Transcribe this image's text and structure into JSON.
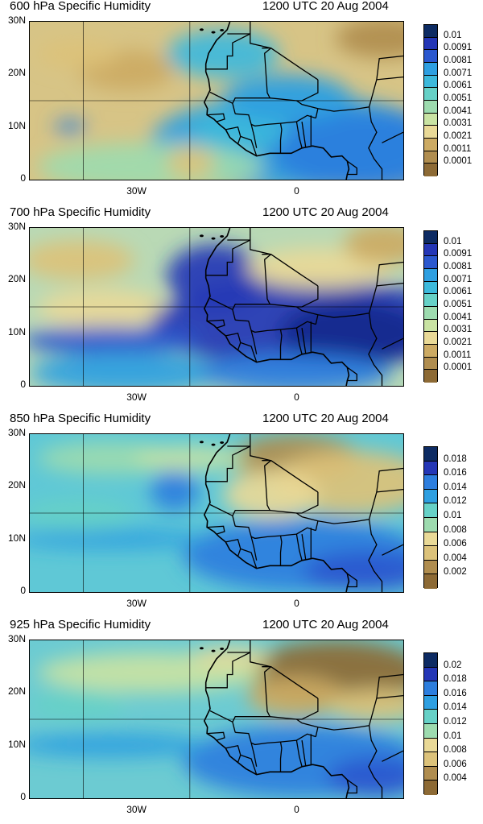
{
  "palette": [
    "#8d6a35",
    "#b08d4f",
    "#ccaa63",
    "#dcc27a",
    "#e9d997",
    "#c9e3a3",
    "#9ddbaf",
    "#66d1c7",
    "#3cb9dc",
    "#2e9fe1",
    "#2d7ede",
    "#2b58cf",
    "#2436b6",
    "#142a8e",
    "#0d2b63"
  ],
  "axes": {
    "y_ticks": [
      "30N",
      "20N",
      "10N",
      "0"
    ],
    "x_ticks": [
      "30W",
      "0"
    ]
  },
  "panels": [
    {
      "title": "600 hPa Specific Humidity",
      "time": "1200 UTC 20 Aug 2004",
      "colorbar": {
        "labels": [
          "0.01",
          "0.0091",
          "0.0081",
          "0.0071",
          "0.0061",
          "0.0051",
          "0.0041",
          "0.0031",
          "0.0021",
          "0.0011",
          "0.0001"
        ],
        "colors": [
          "#0d2b63",
          "#2436b6",
          "#2b58cf",
          "#2d7ede",
          "#2e9fe1",
          "#3cb9dc",
          "#66d1c7",
          "#9ddbaf",
          "#c9e3a3",
          "#e9d997",
          "#dcc27a",
          "#ccaa63",
          "#b08d4f",
          "#8d6a35"
        ]
      },
      "background": "#d7c486",
      "blobs": [
        {
          "cx": 330,
          "cy": 150,
          "rx": 180,
          "ry": 60,
          "c": 9
        },
        {
          "cx": 420,
          "cy": 160,
          "rx": 120,
          "ry": 50,
          "c": 10
        },
        {
          "cx": 260,
          "cy": 135,
          "rx": 60,
          "ry": 25,
          "c": 8
        },
        {
          "cx": 150,
          "cy": 180,
          "rx": 140,
          "ry": 30,
          "c": 6
        },
        {
          "cx": 320,
          "cy": 95,
          "rx": 80,
          "ry": 30,
          "c": 9
        },
        {
          "cx": 240,
          "cy": 40,
          "rx": 70,
          "ry": 30,
          "c": 8
        },
        {
          "cx": 120,
          "cy": 60,
          "rx": 60,
          "ry": 25,
          "c": 2
        },
        {
          "cx": 60,
          "cy": 40,
          "rx": 50,
          "ry": 18,
          "c": 3
        },
        {
          "cx": 440,
          "cy": 20,
          "rx": 60,
          "ry": 25,
          "c": 1
        },
        {
          "cx": 200,
          "cy": 175,
          "rx": 30,
          "ry": 20,
          "c": 3
        },
        {
          "cx": 50,
          "cy": 130,
          "rx": 20,
          "ry": 8,
          "c": 10
        }
      ]
    },
    {
      "title": "700 hPa Specific Humidity",
      "time": "1200 UTC 20 Aug 2004",
      "colorbar": {
        "labels": [
          "0.01",
          "0.0091",
          "0.0081",
          "0.0071",
          "0.0061",
          "0.0051",
          "0.0041",
          "0.0031",
          "0.0021",
          "0.0011",
          "0.0001"
        ],
        "colors": [
          "#0d2b63",
          "#2436b6",
          "#2b58cf",
          "#2d7ede",
          "#2e9fe1",
          "#3cb9dc",
          "#66d1c7",
          "#9ddbaf",
          "#c9e3a3",
          "#e9d997",
          "#dcc27a",
          "#ccaa63",
          "#b08d4f",
          "#8d6a35"
        ]
      },
      "background": "#b9d9b5",
      "blobs": [
        {
          "cx": 60,
          "cy": 40,
          "rx": 70,
          "ry": 25,
          "c": 3
        },
        {
          "cx": 90,
          "cy": 100,
          "rx": 80,
          "ry": 25,
          "c": 4
        },
        {
          "cx": 350,
          "cy": 120,
          "rx": 200,
          "ry": 55,
          "c": 12
        },
        {
          "cx": 230,
          "cy": 60,
          "rx": 60,
          "ry": 40,
          "c": 12
        },
        {
          "cx": 100,
          "cy": 140,
          "rx": 110,
          "ry": 18,
          "c": 11
        },
        {
          "cx": 400,
          "cy": 130,
          "rx": 90,
          "ry": 40,
          "c": 13
        },
        {
          "cx": 360,
          "cy": 50,
          "rx": 90,
          "ry": 25,
          "c": 4
        },
        {
          "cx": 440,
          "cy": 20,
          "rx": 50,
          "ry": 25,
          "c": 2
        },
        {
          "cx": 120,
          "cy": 180,
          "rx": 120,
          "ry": 25,
          "c": 9
        },
        {
          "cx": 330,
          "cy": 180,
          "rx": 120,
          "ry": 25,
          "c": 10
        }
      ]
    },
    {
      "title": "850 hPa Specific Humidity",
      "time": "1200 UTC 20 Aug 2004",
      "colorbar": {
        "labels": [
          "0.018",
          "0.016",
          "0.014",
          "0.012",
          "0.01",
          "0.008",
          "0.006",
          "0.004",
          "0.002"
        ],
        "colors": [
          "#0d2b63",
          "#2436b6",
          "#2b58cf",
          "#2d7ede",
          "#2e9fe1",
          "#3cb9dc",
          "#66d1c7",
          "#9ddbaf",
          "#c9e3a3",
          "#e9d997",
          "#dcc27a",
          "#ccaa63",
          "#b08d4f",
          "#8d6a35"
        ]
      },
      "background": "#5fc8d6",
      "blobs": [
        {
          "cx": 330,
          "cy": 30,
          "rx": 80,
          "ry": 30,
          "c": 1
        },
        {
          "cx": 400,
          "cy": 60,
          "rx": 100,
          "ry": 40,
          "c": 3
        },
        {
          "cx": 300,
          "cy": 75,
          "rx": 60,
          "ry": 30,
          "c": 4
        },
        {
          "cx": 100,
          "cy": 30,
          "rx": 90,
          "ry": 20,
          "c": 6
        },
        {
          "cx": 200,
          "cy": 30,
          "rx": 70,
          "ry": 15,
          "c": 5
        },
        {
          "cx": 180,
          "cy": 70,
          "rx": 30,
          "ry": 25,
          "c": 10
        },
        {
          "cx": 340,
          "cy": 150,
          "rx": 150,
          "ry": 45,
          "c": 10
        },
        {
          "cx": 420,
          "cy": 170,
          "rx": 80,
          "ry": 25,
          "c": 11
        },
        {
          "cx": 100,
          "cy": 130,
          "rx": 120,
          "ry": 12,
          "c": 9
        },
        {
          "cx": 60,
          "cy": 100,
          "rx": 70,
          "ry": 20,
          "c": 7
        }
      ]
    },
    {
      "title": "925 hPa Specific Humidity",
      "time": "1200 UTC 20 Aug 2004",
      "colorbar": {
        "labels": [
          "0.02",
          "0.018",
          "0.016",
          "0.014",
          "0.012",
          "0.01",
          "0.008",
          "0.006",
          "0.004"
        ],
        "colors": [
          "#0d2b63",
          "#2436b6",
          "#2b58cf",
          "#2d7ede",
          "#2e9fe1",
          "#3cb9dc",
          "#66d1c7",
          "#9ddbaf",
          "#c9e3a3",
          "#e9d997",
          "#dcc27a",
          "#ccaa63",
          "#b08d4f",
          "#8d6a35"
        ]
      },
      "background": "#6ccbd2",
      "blobs": [
        {
          "cx": 380,
          "cy": 40,
          "rx": 110,
          "ry": 40,
          "c": 0
        },
        {
          "cx": 330,
          "cy": 70,
          "rx": 60,
          "ry": 25,
          "c": 2
        },
        {
          "cx": 430,
          "cy": 80,
          "rx": 60,
          "ry": 20,
          "c": 3
        },
        {
          "cx": 150,
          "cy": 40,
          "rx": 140,
          "ry": 25,
          "c": 5
        },
        {
          "cx": 250,
          "cy": 20,
          "rx": 50,
          "ry": 12,
          "c": 4
        },
        {
          "cx": 340,
          "cy": 150,
          "rx": 150,
          "ry": 45,
          "c": 10
        },
        {
          "cx": 430,
          "cy": 170,
          "rx": 60,
          "ry": 25,
          "c": 11
        },
        {
          "cx": 100,
          "cy": 130,
          "rx": 120,
          "ry": 15,
          "c": 9
        },
        {
          "cx": 60,
          "cy": 80,
          "rx": 60,
          "ry": 20,
          "c": 7
        }
      ]
    }
  ]
}
